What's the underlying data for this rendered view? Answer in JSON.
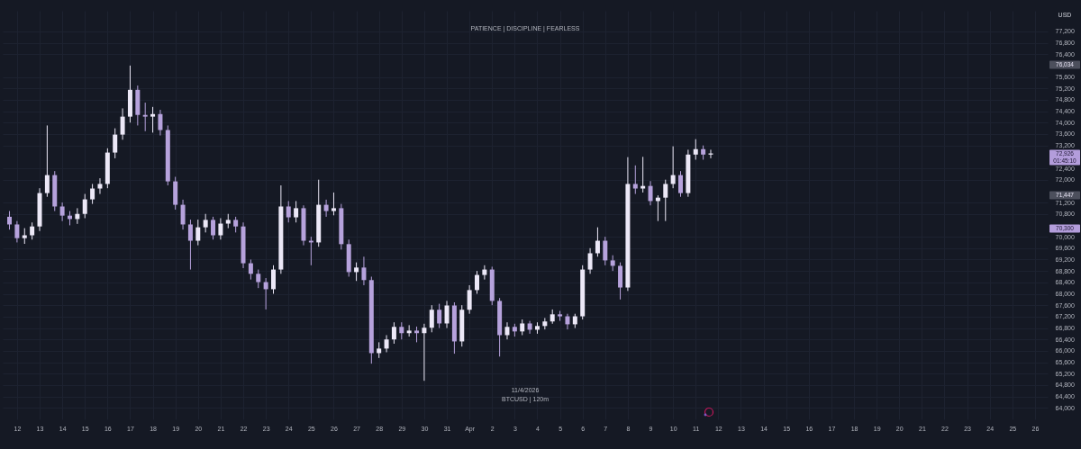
{
  "chart_data": {
    "type": "candlestick",
    "subtitle": "PATIENCE  |  DISCIPLINE  |  FEARLESS",
    "ylabel": "USD",
    "colors": [
      "#b6a2dc",
      "#b6a2dc",
      "#ece8f7",
      "#ece8f7",
      "#ece8f7",
      "#ece8f7",
      "#b6a2dc",
      "#b6a2dc",
      "#b6a2dc",
      "#ece8f7",
      "#ece8f7",
      "#ece8f7",
      "#ece8f7",
      "#ece8f7",
      "#ece8f7",
      "#ece8f7",
      "#ece8f7",
      "#b6a2dc",
      "#b6a2dc",
      "#ece8f7",
      "#b6a2dc",
      "#b6a2dc",
      "#b6a2dc",
      "#b6a2dc",
      "#b6a2dc",
      "#ece8f7",
      "#ece8f7",
      "#b6a2dc",
      "#ece8f7",
      "#ece8f7",
      "#b6a2dc",
      "#b6a2dc",
      "#b6a2dc",
      "#b6a2dc",
      "#b6a2dc",
      "#ece8f7",
      "#ece8f7",
      "#b6a2dc",
      "#ece8f7",
      "#b6a2dc",
      "#b6a2dc",
      "#ece8f7",
      "#b6a2dc",
      "#ece8f7",
      "#b6a2dc",
      "#b6a2dc",
      "#ece8f7",
      "#b6a2dc",
      "#b6a2dc",
      "#ece8f7",
      "#ece8f7",
      "#ece8f7",
      "#b6a2dc",
      "#ece8f7",
      "#b6a2dc",
      "#ece8f7",
      "#ece8f7",
      "#b6a2dc",
      "#ece8f7",
      "#b6a2dc",
      "#ece8f7",
      "#ece8f7",
      "#ece8f7",
      "#ece8f7",
      "#b6a2dc",
      "#b6a2dc",
      "#ece8f7",
      "#b6a2dc",
      "#ece8f7",
      "#b6a2dc",
      "#ece8f7",
      "#ece8f7",
      "#ece8f7",
      "#b6a2dc",
      "#b6a2dc",
      "#ece8f7",
      "#ece8f7",
      "#ece8f7",
      "#ece8f7",
      "#b6a2dc",
      "#b6a2dc",
      "#b6a2dc",
      "#ece8f7",
      "#b6a2dc",
      "#ece8f7",
      "#b6a2dc",
      "#ece8f7",
      "#ece8f7",
      "#ece8f7",
      "#b6a2dc",
      "#ece8f7",
      "#ece8f7",
      "#b6a2dc",
      "#ece8f7"
    ],
    "grid": true,
    "annotations": [
      "76,034",
      "72,926\n01:45:10",
      "71,447",
      "70,300",
      "11/4/2026",
      "BTCUSD  |  120m"
    ],
    "xlim": [
      "2026-03-11T13:35",
      "2026-04-26T08:40"
    ],
    "xticks": [
      {
        "value": "2026-03-12",
        "label": "12"
      },
      {
        "value": "2026-03-13",
        "label": "13"
      },
      {
        "value": "2026-03-14",
        "label": "14"
      },
      {
        "value": "2026-03-15",
        "label": "15"
      },
      {
        "value": "2026-03-16",
        "label": "16"
      },
      {
        "value": "2026-03-17",
        "label": "17"
      },
      {
        "value": "2026-03-18",
        "label": "18"
      },
      {
        "value": "2026-03-19",
        "label": "19"
      },
      {
        "value": "2026-03-20",
        "label": "20"
      },
      {
        "value": "2026-03-21",
        "label": "21"
      },
      {
        "value": "2026-03-22",
        "label": "22"
      },
      {
        "value": "2026-03-23",
        "label": "23"
      },
      {
        "value": "2026-03-24",
        "label": "24"
      },
      {
        "value": "2026-03-25",
        "label": "25"
      },
      {
        "value": "2026-03-26",
        "label": "26"
      },
      {
        "value": "2026-03-27",
        "label": "27"
      },
      {
        "value": "2026-03-28",
        "label": "28"
      },
      {
        "value": "2026-03-29",
        "label": "29"
      },
      {
        "value": "2026-03-30",
        "label": "30"
      },
      {
        "value": "2026-03-31",
        "label": "31"
      },
      {
        "value": "2026-04-01",
        "label": "Apr"
      },
      {
        "value": "2026-04-02",
        "label": "2"
      },
      {
        "value": "2026-04-03",
        "label": "3"
      },
      {
        "value": "2026-04-04",
        "label": "4"
      },
      {
        "value": "2026-04-05",
        "label": "5"
      },
      {
        "value": "2026-04-06",
        "label": "6"
      },
      {
        "value": "2026-04-07",
        "label": "7"
      },
      {
        "value": "2026-04-08",
        "label": "8"
      },
      {
        "value": "2026-04-09",
        "label": "9"
      },
      {
        "value": "2026-04-10",
        "label": "10"
      },
      {
        "value": "2026-04-11",
        "label": "11"
      },
      {
        "value": "2026-04-12",
        "label": "12"
      },
      {
        "value": "2026-04-13",
        "label": "13"
      },
      {
        "value": "2026-04-14",
        "label": "14"
      },
      {
        "value": "2026-04-15",
        "label": "15"
      },
      {
        "value": "2026-04-16",
        "label": "16"
      },
      {
        "value": "2026-04-17",
        "label": "17"
      },
      {
        "value": "2026-04-18",
        "label": "18"
      },
      {
        "value": "2026-04-19",
        "label": "19"
      },
      {
        "value": "2026-04-20",
        "label": "20"
      },
      {
        "value": "2026-04-21",
        "label": "21"
      },
      {
        "value": "2026-04-22",
        "label": "22"
      },
      {
        "value": "2026-04-23",
        "label": "23"
      },
      {
        "value": "2026-04-24",
        "label": "24"
      },
      {
        "value": "2026-04-25",
        "label": "25"
      },
      {
        "value": "2026-04-26",
        "label": "26"
      }
    ],
    "ylim": [
      63600,
      77920
    ],
    "yticks": [
      {
        "value": 64000,
        "label": "64,000"
      },
      {
        "value": 64400,
        "label": "64,400"
      },
      {
        "value": 64800,
        "label": "64,800"
      },
      {
        "value": 65200,
        "label": "65,200"
      },
      {
        "value": 65600,
        "label": "65,600"
      },
      {
        "value": 66000,
        "label": "66,000"
      },
      {
        "value": 66400,
        "label": "66,400"
      },
      {
        "value": 66800,
        "label": "66,800"
      },
      {
        "value": 67200,
        "label": "67,200"
      },
      {
        "value": 67600,
        "label": "67,600"
      },
      {
        "value": 68000,
        "label": "68,000"
      },
      {
        "value": 68400,
        "label": "68,400"
      },
      {
        "value": 68800,
        "label": "68,800"
      },
      {
        "value": 69200,
        "label": "69,200"
      },
      {
        "value": 69600,
        "label": "69,600"
      },
      {
        "value": 70000,
        "label": "70,000"
      },
      {
        "value": 70800,
        "label": "70,800"
      },
      {
        "value": 71200,
        "label": "71,200"
      },
      {
        "value": 72000,
        "label": "72,000"
      },
      {
        "value": 72400,
        "label": "72,400"
      },
      {
        "value": 73200,
        "label": "73,200"
      },
      {
        "value": 73600,
        "label": "73,600"
      },
      {
        "value": 74000,
        "label": "74,000"
      },
      {
        "value": 74400,
        "label": "74,400"
      },
      {
        "value": 74800,
        "label": "74,800"
      },
      {
        "value": 75200,
        "label": "75,200"
      },
      {
        "value": 75600,
        "label": "75,600"
      },
      {
        "value": 76400,
        "label": "76,400"
      },
      {
        "value": 76800,
        "label": "76,800"
      },
      {
        "value": 77200,
        "label": "77,200"
      }
    ],
    "x": [
      "2026-03-11T16:00",
      "2026-03-12T00:00",
      "2026-03-12T08:00",
      "2026-03-12T16:00",
      "2026-03-13T00:00",
      "2026-03-13T08:00",
      "2026-03-13T16:00",
      "2026-03-14T00:00",
      "2026-03-14T08:00",
      "2026-03-14T16:00",
      "2026-03-15T00:00",
      "2026-03-15T08:00",
      "2026-03-15T16:00",
      "2026-03-16T00:00",
      "2026-03-16T08:00",
      "2026-03-16T16:00",
      "2026-03-17T00:00",
      "2026-03-17T08:00",
      "2026-03-17T16:00",
      "2026-03-18T00:00",
      "2026-03-18T08:00",
      "2026-03-18T16:00",
      "2026-03-19T00:00",
      "2026-03-19T08:00",
      "2026-03-19T16:00",
      "2026-03-20T00:00",
      "2026-03-20T08:00",
      "2026-03-20T16:00",
      "2026-03-21T00:00",
      "2026-03-21T08:00",
      "2026-03-21T16:00",
      "2026-03-22T00:00",
      "2026-03-22T08:00",
      "2026-03-22T16:00",
      "2026-03-23T00:00",
      "2026-03-23T08:00",
      "2026-03-23T16:00",
      "2026-03-24T00:00",
      "2026-03-24T08:00",
      "2026-03-24T16:00",
      "2026-03-25T00:00",
      "2026-03-25T08:00",
      "2026-03-25T16:00",
      "2026-03-26T00:00",
      "2026-03-26T08:00",
      "2026-03-26T16:00",
      "2026-03-27T00:00",
      "2026-03-27T08:00",
      "2026-03-27T16:00",
      "2026-03-28T00:00",
      "2026-03-28T08:00",
      "2026-03-28T16:00",
      "2026-03-29T00:00",
      "2026-03-29T08:00",
      "2026-03-29T16:00",
      "2026-03-30T00:00",
      "2026-03-30T08:00",
      "2026-03-30T16:00",
      "2026-03-31T00:00",
      "2026-03-31T08:00",
      "2026-03-31T16:00",
      "2026-04-01T00:00",
      "2026-04-01T08:00",
      "2026-04-01T16:00",
      "2026-04-02T00:00",
      "2026-04-02T08:00",
      "2026-04-02T16:00",
      "2026-04-03T00:00",
      "2026-04-03T08:00",
      "2026-04-03T16:00",
      "2026-04-04T00:00",
      "2026-04-04T08:00",
      "2026-04-04T16:00",
      "2026-04-05T00:00",
      "2026-04-05T08:00",
      "2026-04-05T16:00",
      "2026-04-06T00:00",
      "2026-04-06T08:00",
      "2026-04-06T16:00",
      "2026-04-07T00:00",
      "2026-04-07T08:00",
      "2026-04-07T16:00",
      "2026-04-08T00:00",
      "2026-04-08T08:00",
      "2026-04-08T16:00",
      "2026-04-09T00:00",
      "2026-04-09T08:00",
      "2026-04-09T16:00",
      "2026-04-10T00:00",
      "2026-04-10T08:00",
      "2026-04-10T16:00",
      "2026-04-11T00:00",
      "2026-04-11T08:00",
      "2026-04-11T16:00"
    ],
    "ohlc": [
      [
        70700,
        70900,
        70250,
        70430
      ],
      [
        70430,
        70550,
        69800,
        69950
      ],
      [
        69950,
        70300,
        69750,
        70050
      ],
      [
        70050,
        70500,
        69900,
        70360
      ],
      [
        70360,
        71700,
        70200,
        71530
      ],
      [
        71530,
        73900,
        71400,
        72160
      ],
      [
        72160,
        72300,
        70900,
        71060
      ],
      [
        71060,
        71200,
        70550,
        70740
      ],
      [
        70740,
        70900,
        70400,
        70620
      ],
      [
        70620,
        71000,
        70450,
        70800
      ],
      [
        70800,
        71500,
        70650,
        71310
      ],
      [
        71310,
        71850,
        71150,
        71690
      ],
      [
        71690,
        72050,
        71500,
        71850
      ],
      [
        71850,
        73100,
        71700,
        72950
      ],
      [
        72950,
        73800,
        72750,
        73580
      ],
      [
        73580,
        74500,
        73400,
        74210
      ],
      [
        74210,
        76000,
        74000,
        75150
      ],
      [
        75150,
        75300,
        73900,
        74270
      ],
      [
        74270,
        74700,
        73700,
        74210
      ],
      [
        74210,
        74550,
        73650,
        74300
      ],
      [
        74300,
        74450,
        73550,
        73740
      ],
      [
        73740,
        73900,
        71800,
        71940
      ],
      [
        71940,
        72100,
        70950,
        71120
      ],
      [
        71120,
        71300,
        70250,
        70430
      ],
      [
        70430,
        70600,
        68850,
        69860
      ],
      [
        69860,
        70600,
        69700,
        70330
      ],
      [
        70330,
        70800,
        70150,
        70590
      ],
      [
        70590,
        70700,
        69900,
        70050
      ],
      [
        70050,
        70650,
        69900,
        70460
      ],
      [
        70460,
        70800,
        70300,
        70590
      ],
      [
        70590,
        70700,
        70150,
        70360
      ],
      [
        70360,
        70500,
        68900,
        69070
      ],
      [
        69070,
        69200,
        68500,
        68700
      ],
      [
        68700,
        68850,
        68200,
        68410
      ],
      [
        68410,
        68550,
        67450,
        68160
      ],
      [
        68160,
        69000,
        68000,
        68850
      ],
      [
        68850,
        71800,
        68700,
        71060
      ],
      [
        71060,
        71250,
        70500,
        70680
      ],
      [
        70680,
        71250,
        70500,
        71000
      ],
      [
        71000,
        71100,
        69700,
        69860
      ],
      [
        69860,
        70000,
        69000,
        69800
      ],
      [
        69800,
        72000,
        69650,
        71120
      ],
      [
        71120,
        71300,
        70700,
        70900
      ],
      [
        70900,
        71550,
        70750,
        71000
      ],
      [
        71000,
        71150,
        69550,
        69740
      ],
      [
        69740,
        69900,
        68600,
        68760
      ],
      [
        68760,
        69100,
        68450,
        68920
      ],
      [
        68920,
        69300,
        68300,
        68480
      ],
      [
        68480,
        68600,
        65550,
        65920
      ],
      [
        65920,
        66300,
        65750,
        66080
      ],
      [
        66080,
        66550,
        65950,
        66400
      ],
      [
        66400,
        67000,
        66250,
        66840
      ],
      [
        66840,
        67000,
        66400,
        66620
      ],
      [
        66620,
        66900,
        66500,
        66710
      ],
      [
        66710,
        66850,
        66300,
        66620
      ],
      [
        66620,
        66950,
        64950,
        66810
      ],
      [
        66810,
        67600,
        66650,
        67440
      ],
      [
        67440,
        67650,
        66800,
        66960
      ],
      [
        66960,
        67750,
        66800,
        67590
      ],
      [
        67590,
        67700,
        65900,
        66330
      ],
      [
        66330,
        67600,
        66150,
        67440
      ],
      [
        67440,
        68300,
        67300,
        68130
      ],
      [
        68130,
        68800,
        68000,
        68660
      ],
      [
        68660,
        69000,
        68500,
        68850
      ],
      [
        68850,
        68950,
        67600,
        67750
      ],
      [
        67750,
        67850,
        65800,
        66550
      ],
      [
        66550,
        67000,
        66400,
        66840
      ],
      [
        66840,
        66950,
        66500,
        66680
      ],
      [
        66680,
        67100,
        66550,
        66960
      ],
      [
        66960,
        67050,
        66600,
        66740
      ],
      [
        66740,
        67000,
        66600,
        66870
      ],
      [
        66870,
        67150,
        66750,
        67030
      ],
      [
        67030,
        67450,
        66950,
        67280
      ],
      [
        67280,
        67400,
        67050,
        67210
      ],
      [
        67210,
        67300,
        66750,
        66930
      ],
      [
        66930,
        67300,
        66800,
        67210
      ],
      [
        67210,
        69000,
        67100,
        68850
      ],
      [
        68850,
        69600,
        68700,
        69420
      ],
      [
        69420,
        70330,
        69300,
        69860
      ],
      [
        69860,
        70000,
        69000,
        69170
      ],
      [
        69170,
        69350,
        68800,
        68980
      ],
      [
        68980,
        69100,
        67800,
        68220
      ],
      [
        68220,
        72790,
        68100,
        71850
      ],
      [
        71850,
        72500,
        71500,
        71690
      ],
      [
        71690,
        72800,
        71550,
        71780
      ],
      [
        71780,
        71950,
        71100,
        71250
      ],
      [
        71250,
        71450,
        70550,
        71370
      ],
      [
        71370,
        72000,
        70550,
        71850
      ],
      [
        71850,
        73170,
        71700,
        72160
      ],
      [
        72160,
        72300,
        71400,
        71530
      ],
      [
        71530,
        73050,
        71400,
        72880
      ],
      [
        72880,
        73420,
        72700,
        73070
      ],
      [
        73070,
        73200,
        72700,
        72880
      ],
      [
        72880,
        73050,
        72750,
        72920
      ]
    ]
  }
}
